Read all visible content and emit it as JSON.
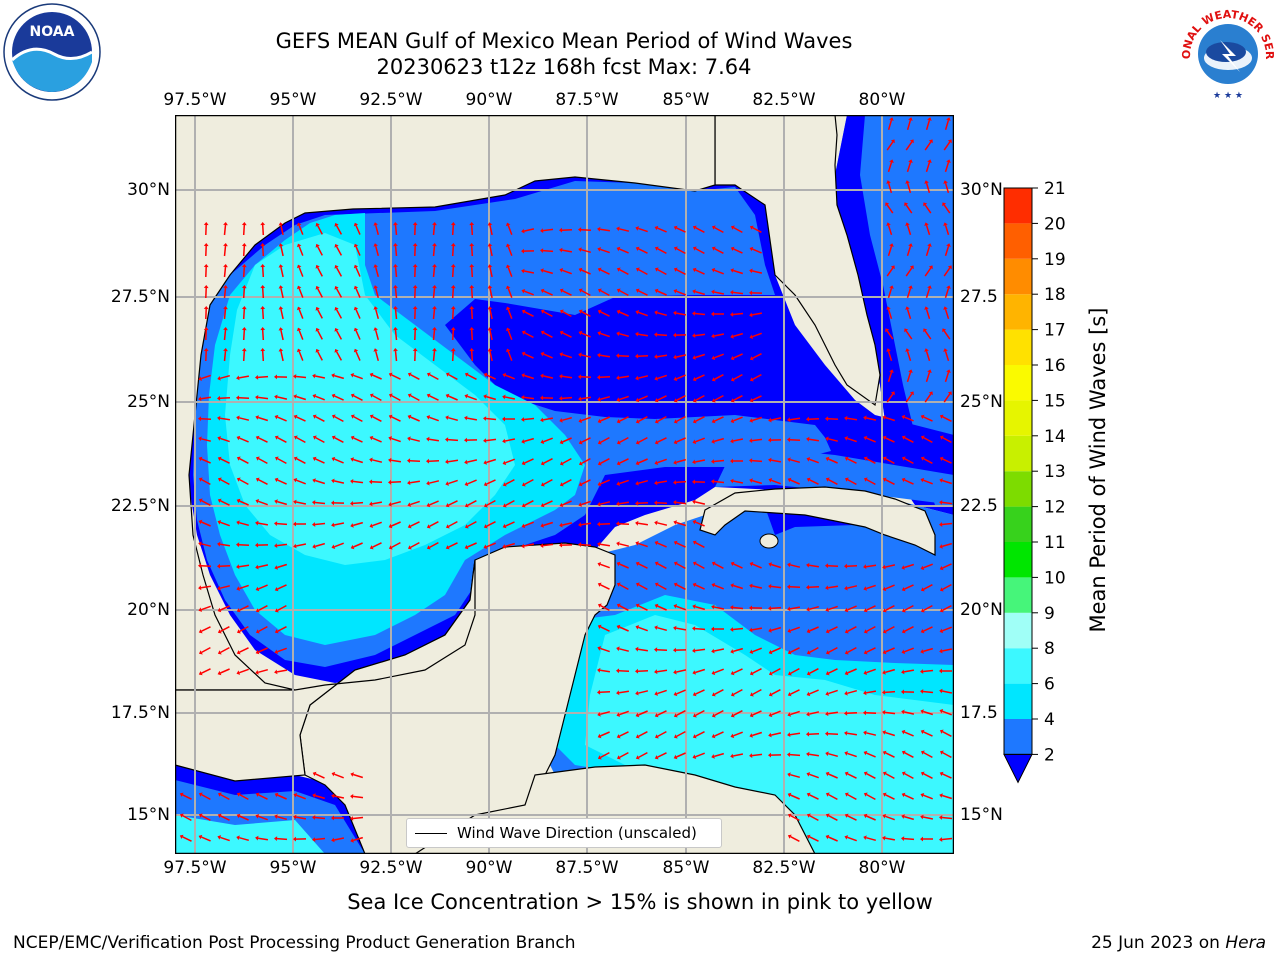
{
  "title_line1": "GEFS MEAN Gulf of Mexico Mean Period of Wind Waves",
  "title_line2": "20230623 t12z 168h fcst   Max: 7.64",
  "lon_labels": [
    "97.5°W",
    "95°W",
    "92.5°W",
    "90°W",
    "87.5°W",
    "85°W",
    "82.5°W",
    "80°W"
  ],
  "lat_labels_left": [
    "30°N",
    "27.5°N",
    "25°N",
    "22.5°N",
    "20°N",
    "17.5°N",
    "15°N"
  ],
  "lat_labels_right": [
    "30°N",
    "27.5",
    "25°N",
    "22.5",
    "20°N",
    "17.5",
    "15°N"
  ],
  "legend_label": "Wind Wave Direction (unscaled)",
  "colorbar": {
    "label": "Mean Period of Wind Waves [s]",
    "ticks": [
      "2",
      "4",
      "6",
      "8",
      "9",
      "10",
      "11",
      "12",
      "13",
      "14",
      "15",
      "16",
      "17",
      "18",
      "19",
      "20",
      "21"
    ],
    "colors": [
      "#1e78ff",
      "#00e6ff",
      "#3cf8ff",
      "#a0fff7",
      "#46f57a",
      "#00e600",
      "#37d21c",
      "#7ddc00",
      "#c8f000",
      "#e6f500",
      "#fafa00",
      "#ffe100",
      "#ffb400",
      "#ff8c00",
      "#ff5f00",
      "#ff2d00"
    ],
    "under_color": "#0000ff"
  },
  "colors": {
    "land": "#efedde",
    "grid": "#b0b0b0",
    "arrow": "#ff0000",
    "very_short": "#0000ff",
    "short": "#1e78ff",
    "mid": "#00e6ff",
    "long": "#3cf8ff"
  },
  "note": "Sea Ice Concentration > 15% is shown in pink to yellow",
  "footer_left": "NCEP/EMC/Verification Post Processing Product Generation Branch",
  "footer_date": "25 Jun 2023 on ",
  "footer_host": "Hera",
  "logo_left": "NOAA",
  "logo_right": "NATIONAL WEATHER SERVICE"
}
